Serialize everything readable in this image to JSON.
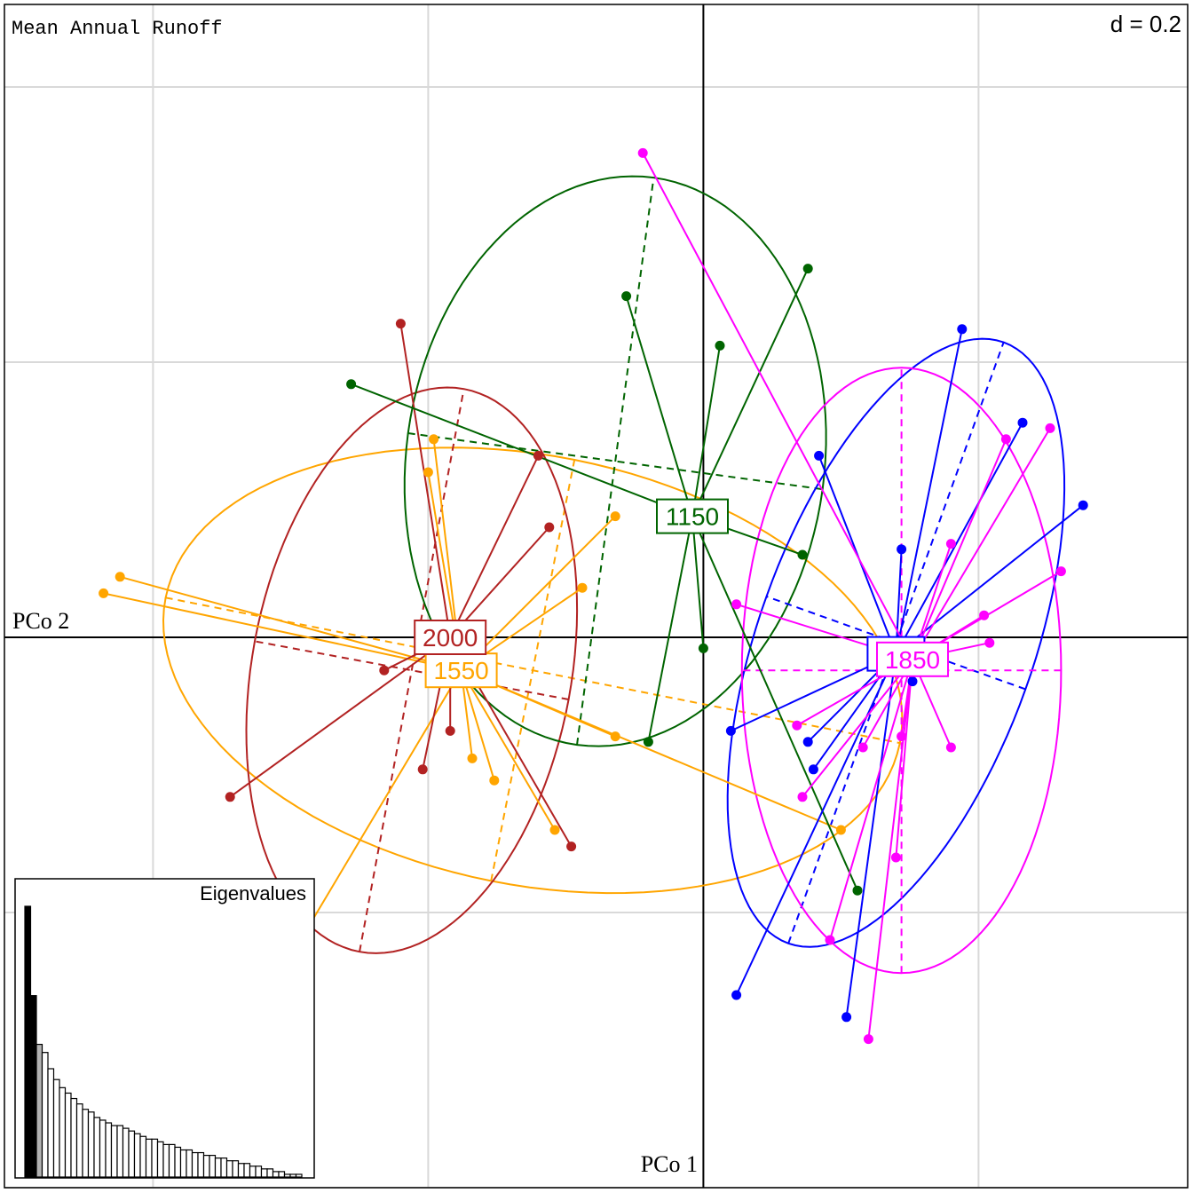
{
  "chart_data": {
    "type": "scatter",
    "title": "Mean Annual Runoff",
    "scale_label": "d = 0.2",
    "xlabel": "PCo 1",
    "ylabel": "PCo 2",
    "grid": true,
    "xlim": [
      -1.27,
      0.88
    ],
    "ylim": [
      -1.0,
      1.15
    ],
    "grid_step": 0.5,
    "inset": {
      "title": "Eigenvalues",
      "position": "bottom-left",
      "values": [
        1.0,
        0.67,
        0.49,
        0.46,
        0.4,
        0.36,
        0.33,
        0.31,
        0.29,
        0.27,
        0.25,
        0.24,
        0.22,
        0.21,
        0.2,
        0.19,
        0.19,
        0.18,
        0.17,
        0.16,
        0.15,
        0.14,
        0.14,
        0.13,
        0.12,
        0.12,
        0.11,
        0.1,
        0.1,
        0.09,
        0.09,
        0.08,
        0.08,
        0.07,
        0.07,
        0.06,
        0.06,
        0.05,
        0.05,
        0.04,
        0.04,
        0.03,
        0.03,
        0.02,
        0.02,
        0.01,
        0.01,
        0.01
      ],
      "highlight": {
        "black": 2,
        "gray": 1
      }
    },
    "groups": [
      {
        "name": "1550",
        "color": "#FFA500",
        "center": [
          -0.44,
          -0.06
        ],
        "ellipse": {
          "c": [
            -0.31,
            -0.06
          ],
          "a": 0.68,
          "b": 0.39,
          "angle": -11.2
        },
        "points": [
          [
            -1.06,
            0.11
          ],
          [
            -1.09,
            0.08
          ],
          [
            -0.49,
            0.36
          ],
          [
            -0.5,
            0.3
          ],
          [
            -0.16,
            0.22
          ],
          [
            -0.22,
            0.09
          ],
          [
            -0.16,
            -0.18
          ],
          [
            0.25,
            -0.35
          ],
          [
            -0.27,
            -0.35
          ],
          [
            -0.42,
            -0.22
          ],
          [
            -0.38,
            -0.26
          ],
          [
            -0.72,
            -0.53
          ]
        ]
      },
      {
        "name": "2000",
        "color": "#B22222",
        "center": [
          -0.46,
          0.0
        ],
        "ellipse": {
          "c": [
            -0.53,
            -0.06
          ],
          "a": 0.52,
          "b": 0.29,
          "angle": 79.5
        },
        "points": [
          [
            -0.55,
            0.57
          ],
          [
            -0.3,
            0.33
          ],
          [
            -0.28,
            0.2
          ],
          [
            -0.58,
            -0.06
          ],
          [
            -0.86,
            -0.29
          ],
          [
            -0.46,
            -0.17
          ],
          [
            -0.51,
            -0.24
          ],
          [
            -0.24,
            -0.38
          ]
        ]
      },
      {
        "name": "1150",
        "color": "#006400",
        "center": [
          -0.02,
          0.22
        ],
        "ellipse": {
          "c": [
            -0.16,
            0.32
          ],
          "a": 0.38,
          "b": 0.52,
          "angle": -7.7
        },
        "points": [
          [
            -0.64,
            0.46
          ],
          [
            -0.14,
            0.62
          ],
          [
            0.03,
            0.53
          ],
          [
            0.19,
            0.67
          ],
          [
            0.18,
            0.15
          ],
          [
            0.0,
            -0.02
          ],
          [
            -0.1,
            -0.19
          ],
          [
            0.28,
            -0.46
          ]
        ]
      },
      {
        "name": "900",
        "color": "#0000FF",
        "center": [
          0.35,
          -0.03
        ],
        "ellipse": {
          "c": [
            0.35,
            -0.01
          ],
          "a": 0.58,
          "b": 0.25,
          "angle": 70.3
        },
        "points": [
          [
            0.21,
            0.33
          ],
          [
            0.47,
            0.56
          ],
          [
            0.58,
            0.39
          ],
          [
            0.69,
            0.24
          ],
          [
            0.36,
            0.16
          ],
          [
            0.38,
            -0.08
          ],
          [
            0.19,
            -0.19
          ],
          [
            0.2,
            -0.24
          ],
          [
            0.05,
            -0.17
          ],
          [
            0.06,
            -0.65
          ],
          [
            0.26,
            -0.69
          ]
        ]
      },
      {
        "name": "1850",
        "color": "#FF00FF",
        "center": [
          0.38,
          -0.04
        ],
        "ellipse": {
          "c": [
            0.36,
            -0.06
          ],
          "a": 0.55,
          "b": 0.29,
          "angle": 90.0
        },
        "points": [
          [
            -0.11,
            0.88
          ],
          [
            0.55,
            0.36
          ],
          [
            0.63,
            0.38
          ],
          [
            0.65,
            0.12
          ],
          [
            0.45,
            0.17
          ],
          [
            0.51,
            0.04
          ],
          [
            0.52,
            -0.01
          ],
          [
            0.06,
            0.06
          ],
          [
            0.36,
            -0.18
          ],
          [
            0.45,
            -0.2
          ],
          [
            0.29,
            -0.2
          ],
          [
            0.17,
            -0.16
          ],
          [
            0.18,
            -0.29
          ],
          [
            0.35,
            -0.4
          ],
          [
            0.23,
            -0.55
          ],
          [
            0.3,
            -0.73
          ]
        ]
      }
    ]
  }
}
